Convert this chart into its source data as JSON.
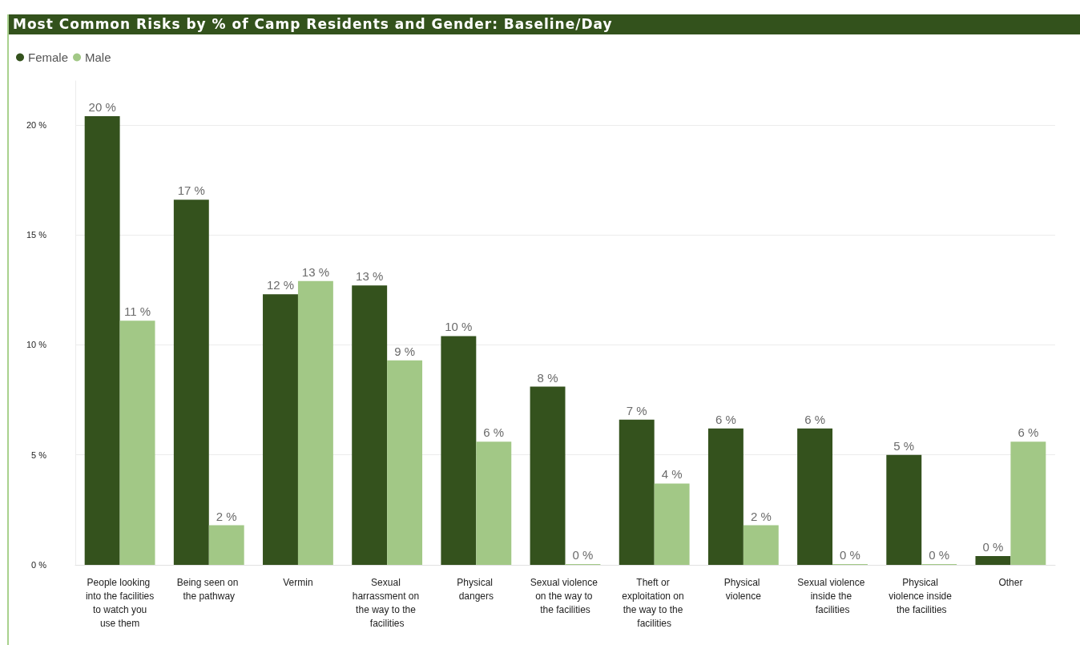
{
  "chart_data": {
    "type": "bar",
    "title": "Most Common Risks by % of Camp Residents and Gender: Baseline/Day",
    "categories": [
      "People looking into the facilities to watch you use them",
      "Being seen on the pathway",
      "Vermin",
      "Sexual harrassment on the way to the facilities",
      "Physical dangers",
      "Sexual violence on the way to the facilities",
      "Theft or exploitation on the way to the facilities",
      "Physical violence",
      "Sexual violence inside the facilities",
      "Physical violence inside the facilities",
      "Other"
    ],
    "series": [
      {
        "name": "Female",
        "color": "#34521d",
        "values": [
          20.4,
          16.6,
          12.3,
          12.7,
          10.4,
          8.1,
          6.6,
          6.2,
          6.2,
          5.0,
          0.4
        ],
        "value_labels": [
          "20 %",
          "17 %",
          "12 %",
          "13 %",
          "10 %",
          "8 %",
          "7 %",
          "6 %",
          "6 %",
          "5 %",
          "0 %"
        ]
      },
      {
        "name": "Male",
        "color": "#a2c886",
        "values": [
          11.1,
          1.8,
          12.9,
          9.3,
          5.6,
          0,
          3.7,
          1.8,
          0,
          0,
          5.6
        ],
        "value_labels": [
          "11 %",
          "2 %",
          "13 %",
          "9 %",
          "6 %",
          "0 %",
          "4 %",
          "2 %",
          "0 %",
          "0 %",
          "6 %"
        ]
      }
    ],
    "ylim": [
      0,
      22
    ],
    "yticks": [
      {
        "value": 0,
        "label": "0 %"
      },
      {
        "value": 5,
        "label": "5 %"
      },
      {
        "value": 10,
        "label": "10 %"
      },
      {
        "value": 15,
        "label": "15 %"
      },
      {
        "value": 20,
        "label": "20 %"
      }
    ],
    "grid": "y",
    "legend": "top left"
  }
}
